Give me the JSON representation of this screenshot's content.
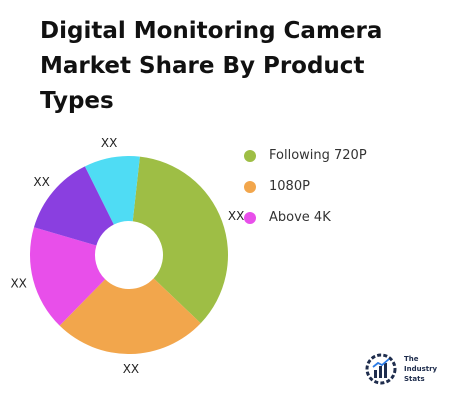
{
  "title": "Digital Monitoring Camera Market Share By Product Types",
  "chart_data": {
    "type": "pie",
    "subtype": "donut",
    "title": "Digital Monitoring Camera Market Share By Product Types",
    "categories": [
      "Following 720P",
      "1080P",
      "Above 4K",
      "",
      ""
    ],
    "values": [
      35,
      25,
      17,
      13,
      9
    ],
    "data_labels": [
      "XX",
      "XX",
      "XX",
      "XX",
      "XX"
    ],
    "colors": [
      "#9ebe45",
      "#f2a64c",
      "#e84fea",
      "#8a3fe0",
      "#4fdcf4"
    ],
    "legend": {
      "position": "right",
      "entries": [
        {
          "label": "Following 720P",
          "color": "#9ebe45"
        },
        {
          "label": "1080P",
          "color": "#f2a64c"
        },
        {
          "label": "Above 4K",
          "color": "#e84fea"
        }
      ]
    }
  },
  "logo": {
    "line1": "The",
    "line2": "Industry",
    "line3": "Stats"
  }
}
